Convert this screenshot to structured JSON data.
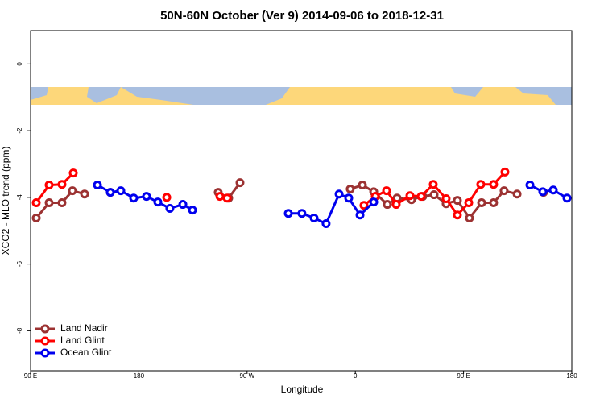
{
  "chart_data": {
    "type": "line",
    "title": "50N-60N October (Ver 9)   2014-09-06 to 2018-12-31",
    "x_label": "Longitude",
    "y_label": "XCO2 - MLO trend (ppm)",
    "xlim": [
      90,
      540
    ],
    "ylim": [
      -9.2,
      1.0
    ],
    "xticks": [
      {
        "value": 90,
        "label": "90 E"
      },
      {
        "value": 180,
        "label": "180"
      },
      {
        "value": 270,
        "label": "90 W"
      },
      {
        "value": 360,
        "label": "0"
      },
      {
        "value": 450,
        "label": "90 E"
      },
      {
        "value": 540,
        "label": "180"
      }
    ],
    "yticks": [
      0,
      -2,
      -4,
      -6,
      -8
    ],
    "legend": "bottom-left",
    "series": [
      {
        "name": "Land Nadir",
        "color": "#9c3232",
        "x": [
          94.7,
          105.4,
          116.1,
          124.8,
          134.9,
          null,
          156.3,
          null,
          246.0,
          254.7,
          264.1,
          null,
          355.8,
          365.9,
          375.3,
          386.6,
          394.7,
          406.7,
          416.1,
          425.5,
          435.5,
          444.9,
          454.9,
          465.0,
          475.0,
          483.7,
          494.5,
          null,
          516.5
        ],
        "values": [
          -4.62,
          -4.16,
          -4.16,
          -3.8,
          -3.9,
          null,
          -3.85,
          null,
          -3.85,
          -4.02,
          -3.56,
          null,
          -3.75,
          -3.63,
          -3.83,
          -4.21,
          -4.02,
          -4.07,
          -3.97,
          -3.92,
          -4.19,
          -4.09,
          -4.62,
          -4.16,
          -4.16,
          -3.8,
          -3.9,
          null,
          -3.85
        ]
      },
      {
        "name": "Land Glint",
        "color": "#ff0000",
        "x": [
          94.7,
          105.4,
          116.1,
          125.5,
          null,
          203.2,
          null,
          247.4,
          253.4,
          null,
          367.2,
          376.6,
          386.0,
          394.0,
          405.4,
          414.8,
          424.8,
          435.5,
          444.9,
          454.3,
          464.3,
          475.0,
          484.4
        ],
        "values": [
          -4.16,
          -3.63,
          -3.61,
          -3.27,
          null,
          -4.0,
          null,
          -3.97,
          -4.02,
          null,
          -4.24,
          -3.97,
          -3.8,
          -4.21,
          -3.95,
          -3.97,
          -3.61,
          -4.04,
          -4.53,
          -4.16,
          -3.61,
          -3.61,
          -3.24
        ]
      },
      {
        "name": "Ocean Glint",
        "color": "#0000ee",
        "x": [
          145.6,
          156.3,
          165.0,
          175.7,
          186.4,
          195.8,
          205.8,
          216.6,
          224.6,
          null,
          304.3,
          315.6,
          325.7,
          335.7,
          346.5,
          354.5,
          363.9,
          375.3,
          null,
          505.2,
          515.9,
          524.6,
          536.0
        ],
        "values": [
          -3.63,
          -3.85,
          -3.8,
          -4.02,
          -3.97,
          -4.14,
          -4.33,
          -4.21,
          -4.38,
          null,
          -4.48,
          -4.48,
          -4.62,
          -4.79,
          -3.9,
          -4.02,
          -4.53,
          -4.14,
          null,
          -3.63,
          -3.83,
          -3.78,
          -4.02
        ]
      }
    ]
  }
}
